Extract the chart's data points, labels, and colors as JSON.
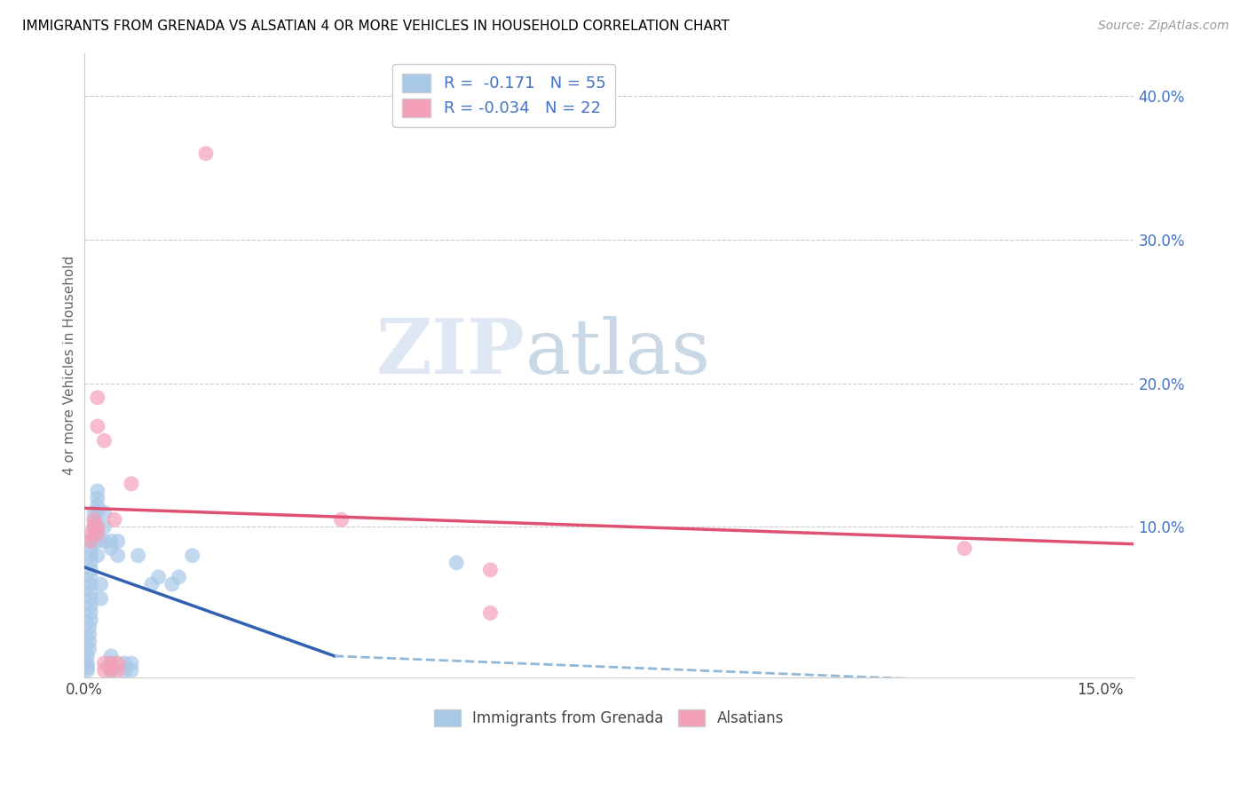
{
  "title": "IMMIGRANTS FROM GRENADA VS ALSATIAN 4 OR MORE VEHICLES IN HOUSEHOLD CORRELATION CHART",
  "source": "Source: ZipAtlas.com",
  "ylabel": "4 or more Vehicles in Household",
  "xlim": [
    0.0,
    0.155
  ],
  "ylim": [
    -0.005,
    0.43
  ],
  "blue_color": "#a8c8e8",
  "pink_color": "#f4a0b8",
  "blue_line_color": "#3060b0",
  "pink_line_color": "#e05070",
  "dashed_line_color": "#90b8d8",
  "legend_text_color": "#4472c4",
  "grenada_points": [
    [
      0.0005,
      0.0
    ],
    [
      0.0005,
      0.002
    ],
    [
      0.0005,
      0.005
    ],
    [
      0.0005,
      0.01
    ],
    [
      0.0008,
      0.015
    ],
    [
      0.0008,
      0.02
    ],
    [
      0.0008,
      0.025
    ],
    [
      0.0008,
      0.03
    ],
    [
      0.001,
      0.035
    ],
    [
      0.001,
      0.04
    ],
    [
      0.001,
      0.045
    ],
    [
      0.001,
      0.05
    ],
    [
      0.001,
      0.055
    ],
    [
      0.001,
      0.06
    ],
    [
      0.001,
      0.065
    ],
    [
      0.001,
      0.07
    ],
    [
      0.001,
      0.075
    ],
    [
      0.001,
      0.08
    ],
    [
      0.001,
      0.085
    ],
    [
      0.001,
      0.09
    ],
    [
      0.0015,
      0.095
    ],
    [
      0.0015,
      0.1
    ],
    [
      0.0015,
      0.105
    ],
    [
      0.0015,
      0.11
    ],
    [
      0.002,
      0.08
    ],
    [
      0.002,
      0.09
    ],
    [
      0.002,
      0.095
    ],
    [
      0.002,
      0.1
    ],
    [
      0.002,
      0.11
    ],
    [
      0.002,
      0.115
    ],
    [
      0.002,
      0.12
    ],
    [
      0.002,
      0.125
    ],
    [
      0.0025,
      0.05
    ],
    [
      0.0025,
      0.06
    ],
    [
      0.003,
      0.09
    ],
    [
      0.003,
      0.1
    ],
    [
      0.003,
      0.11
    ],
    [
      0.004,
      0.0
    ],
    [
      0.004,
      0.005
    ],
    [
      0.004,
      0.01
    ],
    [
      0.004,
      0.085
    ],
    [
      0.004,
      0.09
    ],
    [
      0.005,
      0.08
    ],
    [
      0.005,
      0.09
    ],
    [
      0.006,
      0.0
    ],
    [
      0.006,
      0.005
    ],
    [
      0.007,
      0.0
    ],
    [
      0.007,
      0.005
    ],
    [
      0.008,
      0.08
    ],
    [
      0.01,
      0.06
    ],
    [
      0.011,
      0.065
    ],
    [
      0.013,
      0.06
    ],
    [
      0.014,
      0.065
    ],
    [
      0.016,
      0.08
    ],
    [
      0.055,
      0.075
    ]
  ],
  "alsatian_points": [
    [
      0.018,
      0.36
    ],
    [
      0.001,
      0.09
    ],
    [
      0.001,
      0.095
    ],
    [
      0.0015,
      0.1
    ],
    [
      0.0015,
      0.105
    ],
    [
      0.002,
      0.19
    ],
    [
      0.002,
      0.17
    ],
    [
      0.002,
      0.095
    ],
    [
      0.002,
      0.1
    ],
    [
      0.003,
      0.16
    ],
    [
      0.003,
      0.0
    ],
    [
      0.003,
      0.005
    ],
    [
      0.004,
      0.0
    ],
    [
      0.004,
      0.005
    ],
    [
      0.005,
      0.0
    ],
    [
      0.005,
      0.005
    ],
    [
      0.0045,
      0.105
    ],
    [
      0.007,
      0.13
    ],
    [
      0.038,
      0.105
    ],
    [
      0.06,
      0.07
    ],
    [
      0.13,
      0.085
    ],
    [
      0.06,
      0.04
    ]
  ],
  "blue_trendline_solid": [
    [
      0.0,
      0.072
    ],
    [
      0.037,
      0.01
    ]
  ],
  "blue_trendline_dashed": [
    [
      0.037,
      0.01
    ],
    [
      0.155,
      -0.012
    ]
  ],
  "pink_trendline": [
    [
      0.0,
      0.113
    ],
    [
      0.155,
      0.088
    ]
  ]
}
